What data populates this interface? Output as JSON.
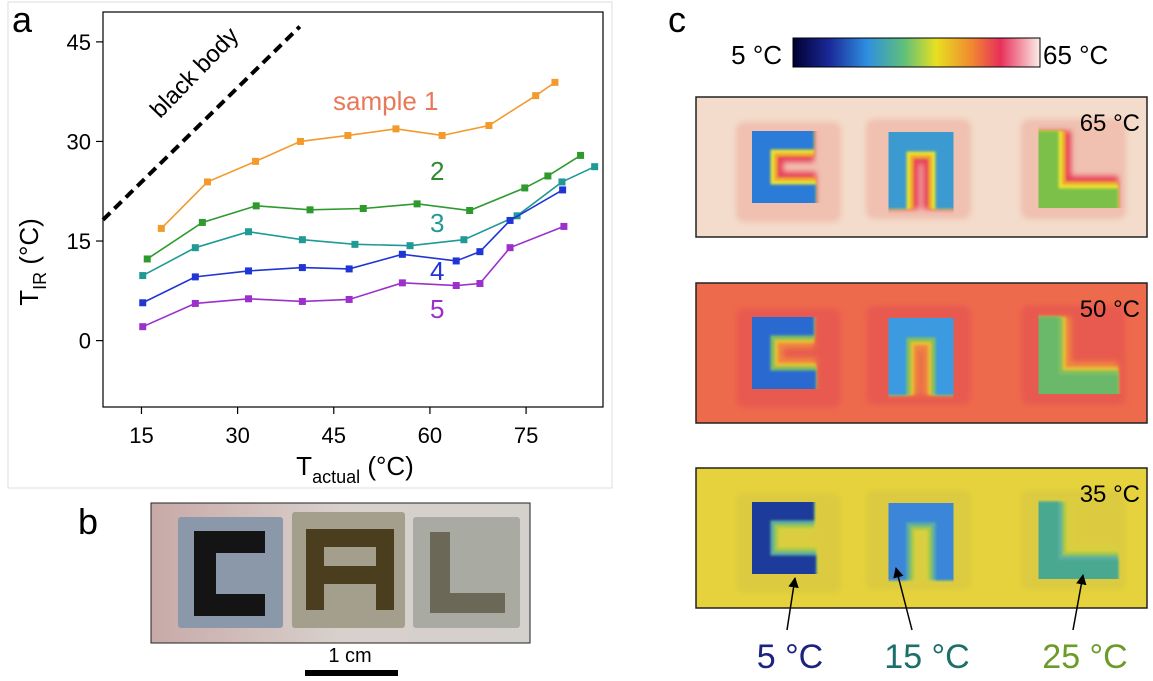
{
  "panel_labels": [
    "a",
    "b",
    "c"
  ],
  "chart_data": {
    "type": "line",
    "xlabel": {
      "main": "T",
      "sub": "actual",
      "unit": " (°C)"
    },
    "ylabel": {
      "main": "T",
      "sub": "IR",
      "unit": " (°C)"
    },
    "xlim": [
      9,
      87
    ],
    "ylim": [
      -10,
      49.5
    ],
    "xticks": [
      15,
      30,
      45,
      60,
      75
    ],
    "yticks": [
      0,
      15,
      30,
      45
    ],
    "series": [
      {
        "name": "black body",
        "color": "#000000",
        "dash": true,
        "markers": false,
        "x": [
          9,
          39.7
        ],
        "values": [
          18.2,
          47.3
        ]
      },
      {
        "name": "sample 1",
        "color": "#f39a2c",
        "label_color": "#e8785a",
        "markers": true,
        "x": [
          18.1,
          25.3,
          32.8,
          39.8,
          47.2,
          54.7,
          61.9,
          69.2,
          76.5,
          79.5
        ],
        "values": [
          16.9,
          23.9,
          27.0,
          30.0,
          30.9,
          31.9,
          30.9,
          32.4,
          36.9,
          38.9
        ]
      },
      {
        "name": "2",
        "color": "#2e9a2e",
        "label_color": "#2e8b2e",
        "markers": true,
        "x": [
          15.9,
          24.5,
          32.9,
          41.3,
          49.6,
          58.0,
          66.2,
          74.8,
          78.4,
          83.5
        ],
        "values": [
          12.3,
          17.8,
          20.3,
          19.7,
          19.9,
          20.6,
          19.6,
          23.0,
          24.8,
          27.9
        ]
      },
      {
        "name": "3",
        "color": "#1f9a96",
        "label_color": "#1f9a96",
        "markers": true,
        "x": [
          15.2,
          23.4,
          31.7,
          40.1,
          48.3,
          56.9,
          65.3,
          73.6,
          80.6,
          85.7
        ],
        "values": [
          9.8,
          14.0,
          16.4,
          15.2,
          14.5,
          14.3,
          15.2,
          18.8,
          23.9,
          26.2
        ]
      },
      {
        "name": "4",
        "color": "#1f35d6",
        "label_color": "#1f35d6",
        "markers": true,
        "x": [
          15.2,
          23.4,
          31.7,
          40.1,
          47.4,
          55.7,
          64.1,
          67.8,
          72.5,
          80.7
        ],
        "values": [
          5.7,
          9.6,
          10.5,
          11.0,
          10.8,
          13.0,
          12.0,
          13.4,
          18.1,
          22.7
        ]
      },
      {
        "name": "5",
        "color": "#9b30cc",
        "label_color": "#9b30cc",
        "markers": true,
        "x": [
          15.2,
          23.4,
          31.7,
          40.1,
          47.4,
          55.7,
          64.1,
          67.8,
          72.5,
          80.9
        ],
        "values": [
          2.1,
          5.6,
          6.3,
          5.9,
          6.2,
          8.7,
          8.3,
          8.6,
          14.0,
          17.2
        ]
      }
    ]
  },
  "scale_bar": "1 cm",
  "colorbar": {
    "min_label": "5 °C",
    "max_label": "65 °C"
  },
  "thermal_images": [
    {
      "label": "65 °C"
    },
    {
      "label": "50 °C"
    },
    {
      "label": "35 °C"
    }
  ],
  "callouts": [
    "5 °C",
    "15 °C",
    "25 °C"
  ]
}
